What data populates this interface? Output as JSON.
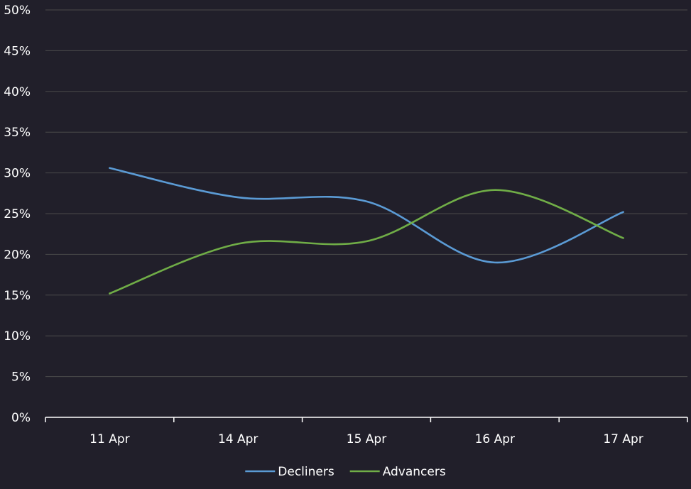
{
  "chart_data": {
    "type": "line",
    "x": [
      "11 Apr",
      "14 Apr",
      "15 Apr",
      "16 Apr",
      "17 Apr"
    ],
    "y_ticks": [
      "0%",
      "5%",
      "10%",
      "15%",
      "20%",
      "25%",
      "30%",
      "35%",
      "40%",
      "45%",
      "50%"
    ],
    "ylim": [
      0,
      50
    ],
    "grid": true,
    "legend_position": "bottom",
    "series": [
      {
        "name": "Decliners",
        "color": "#5b9bd5",
        "values": [
          30.6,
          27.0,
          26.5,
          19.0,
          25.2
        ]
      },
      {
        "name": "Advancers",
        "color": "#70ad47",
        "values": [
          15.2,
          21.3,
          21.6,
          27.9,
          22.0
        ]
      }
    ],
    "colors": {
      "background": "#211f2a",
      "grid": "#4a4a4a",
      "axis": "#ffffff",
      "text": "#ffffff"
    }
  }
}
